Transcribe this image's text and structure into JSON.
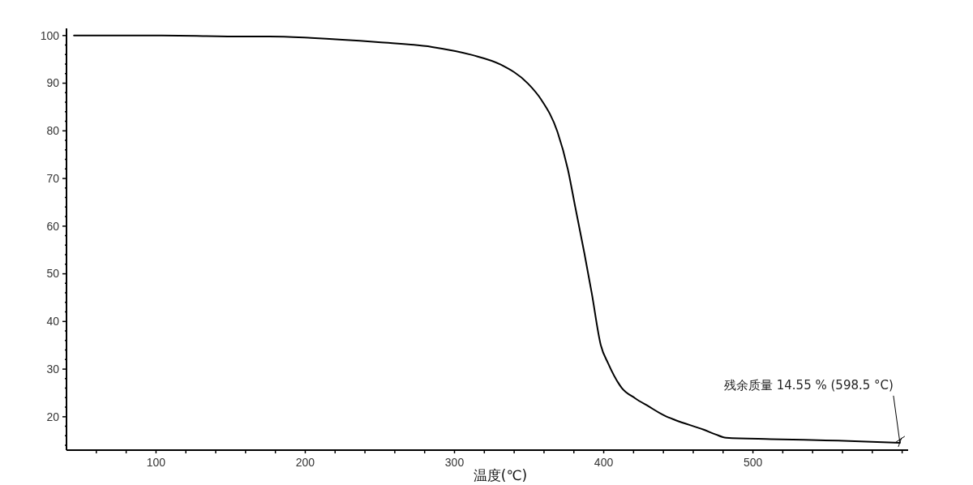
{
  "chart_data": {
    "type": "line",
    "xlabel": "温度(℃)",
    "xlim": [
      40,
      604
    ],
    "ylim": [
      13,
      101.5
    ],
    "xticks": [
      {
        "value": 60,
        "label": null
      },
      {
        "value": 80,
        "label": null
      },
      100,
      {
        "value": 120,
        "label": null
      },
      {
        "value": 140,
        "label": null
      },
      {
        "value": 160,
        "label": null
      },
      {
        "value": 180,
        "label": null
      },
      200,
      {
        "value": 220,
        "label": null
      },
      {
        "value": 240,
        "label": null
      },
      {
        "value": 260,
        "label": null
      },
      {
        "value": 280,
        "label": null
      },
      300,
      {
        "value": 320,
        "label": null
      },
      {
        "value": 340,
        "label": null
      },
      {
        "value": 360,
        "label": null
      },
      {
        "value": 380,
        "label": null
      },
      400,
      {
        "value": 420,
        "label": null
      },
      {
        "value": 440,
        "label": null
      },
      {
        "value": 460,
        "label": null
      },
      {
        "value": 480,
        "label": null
      },
      500,
      {
        "value": 520,
        "label": null
      },
      {
        "value": 540,
        "label": null
      },
      {
        "value": 560,
        "label": null
      },
      {
        "value": 580,
        "label": null
      },
      {
        "value": 600,
        "label": null
      }
    ],
    "yticks": [
      {
        "value": 14,
        "label": null
      },
      {
        "value": 16,
        "label": null
      },
      {
        "value": 18,
        "label": null
      },
      20,
      {
        "value": 22,
        "label": null
      },
      {
        "value": 24,
        "label": null
      },
      {
        "value": 26,
        "label": null
      },
      {
        "value": 28,
        "label": null
      },
      30,
      {
        "value": 32,
        "label": null
      },
      {
        "value": 34,
        "label": null
      },
      {
        "value": 36,
        "label": null
      },
      {
        "value": 38,
        "label": null
      },
      40,
      {
        "value": 42,
        "label": null
      },
      {
        "value": 44,
        "label": null
      },
      {
        "value": 46,
        "label": null
      },
      {
        "value": 48,
        "label": null
      },
      50,
      {
        "value": 52,
        "label": null
      },
      {
        "value": 54,
        "label": null
      },
      {
        "value": 56,
        "label": null
      },
      {
        "value": 58,
        "label": null
      },
      60,
      {
        "value": 62,
        "label": null
      },
      {
        "value": 64,
        "label": null
      },
      {
        "value": 66,
        "label": null
      },
      {
        "value": 68,
        "label": null
      },
      70,
      {
        "value": 72,
        "label": null
      },
      {
        "value": 74,
        "label": null
      },
      {
        "value": 76,
        "label": null
      },
      {
        "value": 78,
        "label": null
      },
      80,
      {
        "value": 82,
        "label": null
      },
      {
        "value": 84,
        "label": null
      },
      {
        "value": 86,
        "label": null
      },
      {
        "value": 88,
        "label": null
      },
      90,
      {
        "value": 92,
        "label": null
      },
      {
        "value": 94,
        "label": null
      },
      {
        "value": 96,
        "label": null
      },
      {
        "value": 98,
        "label": null
      },
      100
    ],
    "grid": false,
    "marker": "none",
    "line_style": "solid",
    "series": [
      {
        "color": "#000000",
        "x": [
          45,
          104,
          159,
          176,
          204,
          249,
          285,
          312,
          331,
          349,
          358,
          369,
          376,
          381,
          387,
          392,
          398,
          403,
          412,
          421,
          430,
          441,
          448,
          467,
          475,
          482,
          512,
          557,
          598.5
        ],
        "values": [
          100,
          100,
          99.8,
          99.8,
          99.5,
          98.6,
          97.6,
          95.9,
          93.9,
          90,
          86.6,
          79.8,
          71.9,
          63.9,
          54.4,
          45.9,
          35.1,
          31.2,
          26.1,
          23.9,
          22.2,
          20.2,
          19.3,
          17.3,
          16.3,
          15.6,
          15.3,
          15,
          14.55
        ]
      }
    ],
    "annotations": [
      {
        "text": "残余质量 14.55 % (598.5 °C)",
        "x": 598.5,
        "y": 14.55
      }
    ]
  }
}
